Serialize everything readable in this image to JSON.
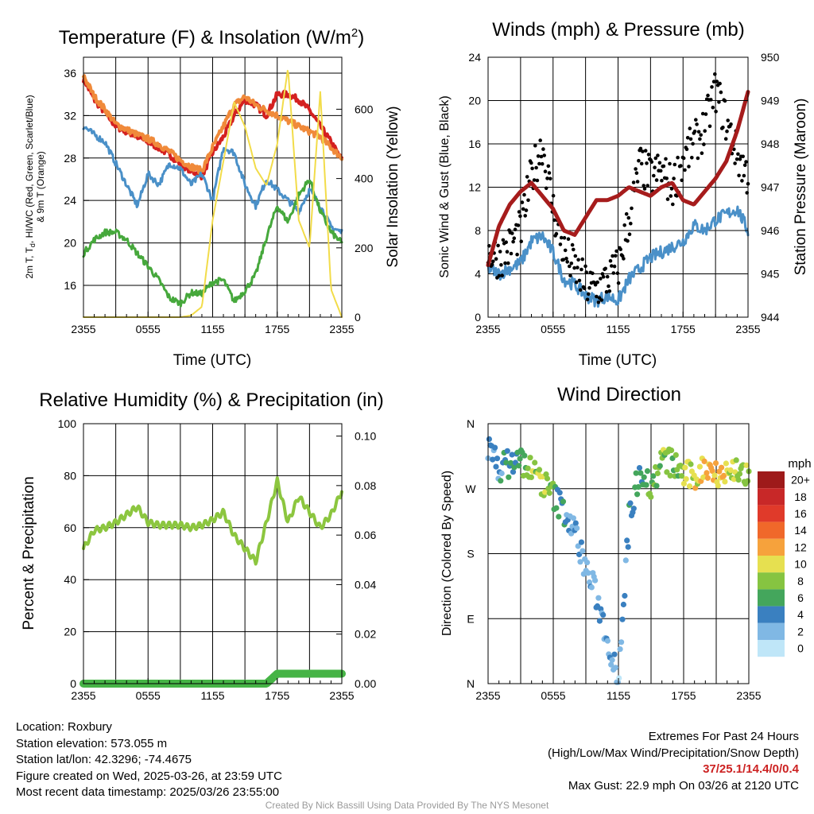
{
  "chart_data": [
    {
      "type": "line",
      "title": "Temperature (F) & Insolation (W/m²)",
      "title_main": "Temperature (F) & Insolation (W/m",
      "title_sup": "2",
      "title_close": ")",
      "xlabel": "Time (UTC)",
      "ylabel": "2m T, Td, HI/WC (Red, Green, Scarlet/Blue) & 9m T (Orange)",
      "ylabel_line1": "2m T, T",
      "ylabel_sub": "d",
      "ylabel_line1_rest": ", HI/WC (Red, Green, Scarlet/Blue)",
      "ylabel_line2": "& 9m T (Orange)",
      "ylabel_right": "Solar Insolation (Yellow)",
      "x_ticks": [
        "2355",
        "0555",
        "1155",
        "1755",
        "2355"
      ],
      "ylim": [
        13,
        37.5
      ],
      "yticks": [
        16,
        20,
        24,
        28,
        32,
        36
      ],
      "ylim_right": [
        0,
        750
      ],
      "yticks_right": [
        0,
        200,
        400,
        600
      ],
      "grid": true,
      "x_hours": [
        0,
        1,
        2,
        3,
        4,
        5,
        6,
        7,
        8,
        9,
        10,
        11,
        12,
        13,
        14,
        15,
        16,
        17,
        18,
        19,
        20,
        21,
        22,
        23,
        24
      ],
      "series": [
        {
          "color": "#d42020",
          "values": [
            35.5,
            33.5,
            32.3,
            31.0,
            30.5,
            30.0,
            29.5,
            29.0,
            28.3,
            27.5,
            26.8,
            26.3,
            28.5,
            30.0,
            32.0,
            33.5,
            33.0,
            32.0,
            34.0,
            34.0,
            33.5,
            32.5,
            31.0,
            29.5,
            27.8
          ]
        },
        {
          "color": "#f08a3a",
          "values": [
            35.8,
            33.8,
            32.6,
            31.2,
            30.7,
            30.2,
            29.8,
            29.3,
            28.6,
            27.8,
            27.2,
            26.8,
            29.0,
            31.0,
            33.0,
            33.8,
            33.0,
            32.5,
            32.0,
            31.5,
            31.0,
            30.5,
            30.0,
            29.0,
            28.0
          ]
        },
        {
          "color": "#4a90c8",
          "values": [
            31.0,
            30.2,
            29.5,
            27.5,
            25.5,
            23.5,
            26.5,
            25.5,
            27.5,
            27.0,
            25.5,
            26.5,
            24.0,
            29.0,
            28.5,
            25.5,
            23.5,
            26.0,
            25.0,
            24.0,
            23.0,
            25.0,
            23.5,
            21.5,
            21.0
          ]
        },
        {
          "color": "#46a83c",
          "values": [
            19.0,
            20.3,
            21.0,
            21.0,
            20.3,
            19.0,
            17.8,
            16.5,
            14.8,
            14.3,
            15.3,
            15.2,
            16.3,
            16.5,
            14.5,
            15.5,
            17.0,
            20.5,
            23.5,
            22.0,
            24.5,
            26.0,
            23.0,
            21.0,
            20.0
          ]
        },
        {
          "color": "#f2dc4a",
          "axis": "right",
          "values": [
            0,
            0,
            0,
            0,
            0,
            0,
            0,
            0,
            0,
            0,
            5,
            30,
            280,
            450,
            620,
            550,
            430,
            380,
            500,
            720,
            280,
            200,
            650,
            80,
            0
          ]
        }
      ]
    },
    {
      "type": "line",
      "title": "Winds (mph) & Pressure (mb)",
      "xlabel": "Time (UTC)",
      "ylabel": "Sonic Wind & Gust (Blue, Black)",
      "ylabel_right": "Station Pressure (Maroon)",
      "x_ticks": [
        "2355",
        "0555",
        "1155",
        "1755",
        "2355"
      ],
      "ylim": [
        0,
        24
      ],
      "yticks": [
        0,
        4,
        8,
        12,
        16,
        20,
        24
      ],
      "ylim_right": [
        944,
        950
      ],
      "yticks_right": [
        944,
        945,
        946,
        947,
        948,
        949,
        950
      ],
      "grid": true,
      "x_hours": [
        0,
        1,
        2,
        3,
        4,
        5,
        6,
        7,
        8,
        9,
        10,
        11,
        12,
        13,
        14,
        15,
        16,
        17,
        18,
        19,
        20,
        21,
        22,
        23,
        24
      ],
      "series": [
        {
          "name": "Sonic Wind",
          "color": "#4a90c8",
          "values": [
            4.5,
            4.0,
            4.5,
            5.0,
            7.0,
            7.5,
            6.0,
            3.5,
            3.0,
            2.0,
            1.5,
            2.0,
            1.5,
            3.5,
            4.5,
            5.5,
            6.0,
            6.5,
            7.0,
            8.5,
            8.0,
            9.0,
            9.5,
            10.0,
            8.0
          ]
        },
        {
          "name": "Gust",
          "color": "#000000",
          "type": "scatter",
          "values": [
            6.0,
            5.5,
            6.5,
            8.0,
            13.0,
            16.0,
            10.0,
            6.0,
            4.5,
            3.0,
            2.5,
            3.5,
            4.5,
            9.0,
            14.0,
            13.0,
            13.5,
            12.0,
            14.5,
            16.0,
            17.5,
            21.0,
            18.0,
            15.0,
            13.0
          ]
        },
        {
          "name": "Station Pressure",
          "color": "#a61c1c",
          "axis": "right",
          "values": [
            945.2,
            946.1,
            946.6,
            946.9,
            947.1,
            946.8,
            946.5,
            946.0,
            945.9,
            946.3,
            946.7,
            946.7,
            946.8,
            947.0,
            946.9,
            946.8,
            947.0,
            947.1,
            946.7,
            946.6,
            946.9,
            947.2,
            947.6,
            948.3,
            949.2
          ]
        }
      ]
    },
    {
      "type": "line",
      "title": "Relative Humidity (%) & Precipitation (in)",
      "xlabel": "",
      "ylabel": "Percent & Precipitation",
      "x_ticks": [
        "2355",
        "0555",
        "1155",
        "1755",
        "2355"
      ],
      "ylim": [
        0,
        100
      ],
      "yticks": [
        0,
        20,
        40,
        60,
        80,
        100
      ],
      "ylim_right": [
        0,
        0.105
      ],
      "yticks_right": [
        0.0,
        0.02,
        0.04,
        0.06,
        0.08,
        0.1
      ],
      "yticks_right_labels": [
        "0.00",
        "0.02",
        "0.04",
        "0.06",
        "0.08",
        "0.10"
      ],
      "grid": true,
      "x_hours": [
        0,
        1,
        2,
        3,
        4,
        5,
        6,
        7,
        8,
        9,
        10,
        11,
        12,
        13,
        14,
        15,
        16,
        17,
        18,
        19,
        20,
        21,
        22,
        23,
        24
      ],
      "series": [
        {
          "name": "Relative Humidity",
          "color": "#8cc63f",
          "values": [
            52,
            59,
            60,
            62,
            65,
            68,
            62,
            61,
            61,
            61,
            60,
            61,
            63,
            66,
            57,
            52,
            47,
            62,
            78,
            62,
            72,
            66,
            60,
            65,
            74
          ]
        },
        {
          "name": "Precipitation",
          "color": "#46b446",
          "axis": "right",
          "values": [
            0,
            0,
            0,
            0,
            0,
            0,
            0,
            0,
            0,
            0,
            0,
            0,
            0,
            0,
            0,
            0,
            0,
            0,
            0.004,
            0.004,
            0.004,
            0.004,
            0.004,
            0.004,
            0.004
          ]
        }
      ]
    },
    {
      "type": "scatter",
      "title": "Wind Direction",
      "xlabel": "",
      "ylabel": "Direction (Colored By Speed)",
      "x_ticks": [
        "2355",
        "0555",
        "1155",
        "1755",
        "2355"
      ],
      "y_ticks": [
        "N",
        "E",
        "S",
        "W",
        "N"
      ],
      "ylim": [
        0,
        360
      ],
      "grid": true,
      "legend_title": "mph",
      "legend_position": "right",
      "colorbar_labels": [
        "20+",
        "18",
        "16",
        "14",
        "12",
        "10",
        "8",
        "6",
        "4",
        "2",
        "0"
      ],
      "colorbar_colors": [
        "#9e1a1a",
        "#c82828",
        "#e03a2a",
        "#f0682a",
        "#f6a23c",
        "#e6e050",
        "#86c441",
        "#44a65c",
        "#3a80c0",
        "#80b8e4",
        "#bfe6f8"
      ],
      "x_hours": [
        0,
        1,
        2,
        3,
        4,
        5,
        6,
        7,
        8,
        9,
        10,
        11,
        12,
        13,
        14,
        15,
        16,
        17,
        18,
        19,
        20,
        21,
        22,
        23,
        24
      ],
      "series": [
        {
          "name": "Direction",
          "directions": [
            325,
            300,
            305,
            310,
            295,
            280,
            260,
            240,
            210,
            160,
            120,
            60,
            10,
            230,
            300,
            270,
            310,
            305,
            290,
            285,
            300,
            295,
            290,
            300,
            280
          ],
          "speeds": [
            3,
            4,
            5,
            6,
            8,
            9,
            7,
            4,
            3,
            2,
            2,
            3,
            2,
            4,
            6,
            7,
            8,
            7,
            9,
            10,
            11,
            12,
            10,
            9,
            8
          ]
        }
      ]
    }
  ],
  "info": {
    "location": "Location: Roxbury",
    "elevation": "Station elevation: 573.055 m",
    "latlon": "Station lat/lon: 42.3296; -74.4675",
    "created": "Figure created on Wed, 2025-03-26, at 23:59 UTC",
    "recent": "Most recent data timestamp: 2025/03/26 23:55:00"
  },
  "extremes": {
    "title": "Extremes For Past 24 Hours",
    "subtitle": "(High/Low/Max Wind/Precipitation/Snow Depth)",
    "values": "37/25.1/14.4/0/0.4",
    "gust": "Max Gust: 22.9 mph On 03/26 at 2120 UTC"
  },
  "credit": "Created By Nick Bassill Using Data Provided By The NYS Mesonet"
}
